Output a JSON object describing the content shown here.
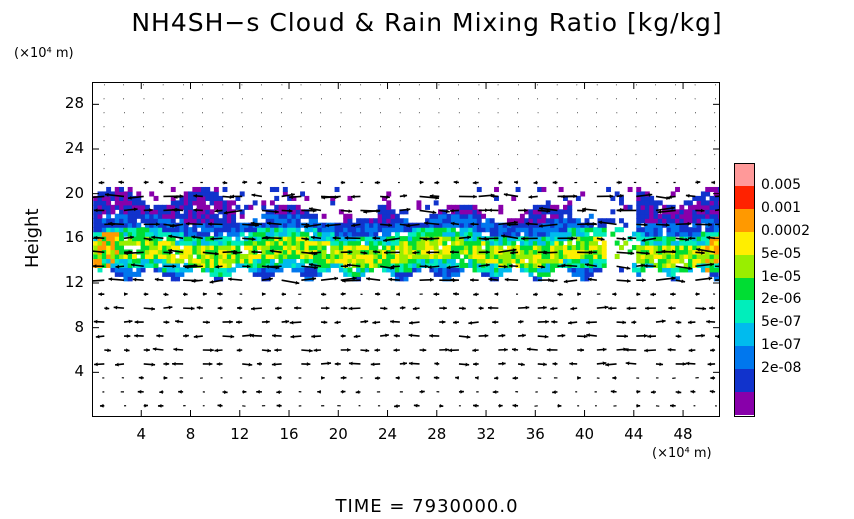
{
  "title": "NH4SH−s Cloud & Rain Mixing Ratio [kg/kg]",
  "y_unit_label": "(×10⁴ m)",
  "x_unit_label": "(×10⁴ m)",
  "time_label": "TIME  =  7930000.0",
  "chart_data": {
    "type": "heatmap",
    "title": "NH4SH−s Cloud & Rain Mixing Ratio [kg/kg]",
    "xlabel": "",
    "ylabel": "Height",
    "x_unit": "(×10⁴ m)",
    "y_unit": "(×10⁴ m)",
    "xlim": [
      0,
      51
    ],
    "ylim": [
      0,
      30
    ],
    "x_ticks": [
      "4",
      "8",
      "12",
      "16",
      "20",
      "24",
      "28",
      "32",
      "36",
      "40",
      "44",
      "48"
    ],
    "y_ticks": [
      "4",
      "8",
      "12",
      "16",
      "20",
      "24",
      "28"
    ],
    "colorbar_labels": [
      "0.005",
      "0.001",
      "0.0002",
      "5e-05",
      "1e-05",
      "2e-06",
      "5e-07",
      "1e-07",
      "2e-08"
    ],
    "colorbar_colors": [
      "#ff9999",
      "#ff2200",
      "#ff9900",
      "#ffee00",
      "#99ee00",
      "#00dd33",
      "#00eebb",
      "#00bbee",
      "#0077ee",
      "#1133cc",
      "#8800aa"
    ],
    "cloud_layer_height_range": [
      12,
      20
    ],
    "overlay": "wind vector arrows",
    "time": "7930000.0"
  }
}
